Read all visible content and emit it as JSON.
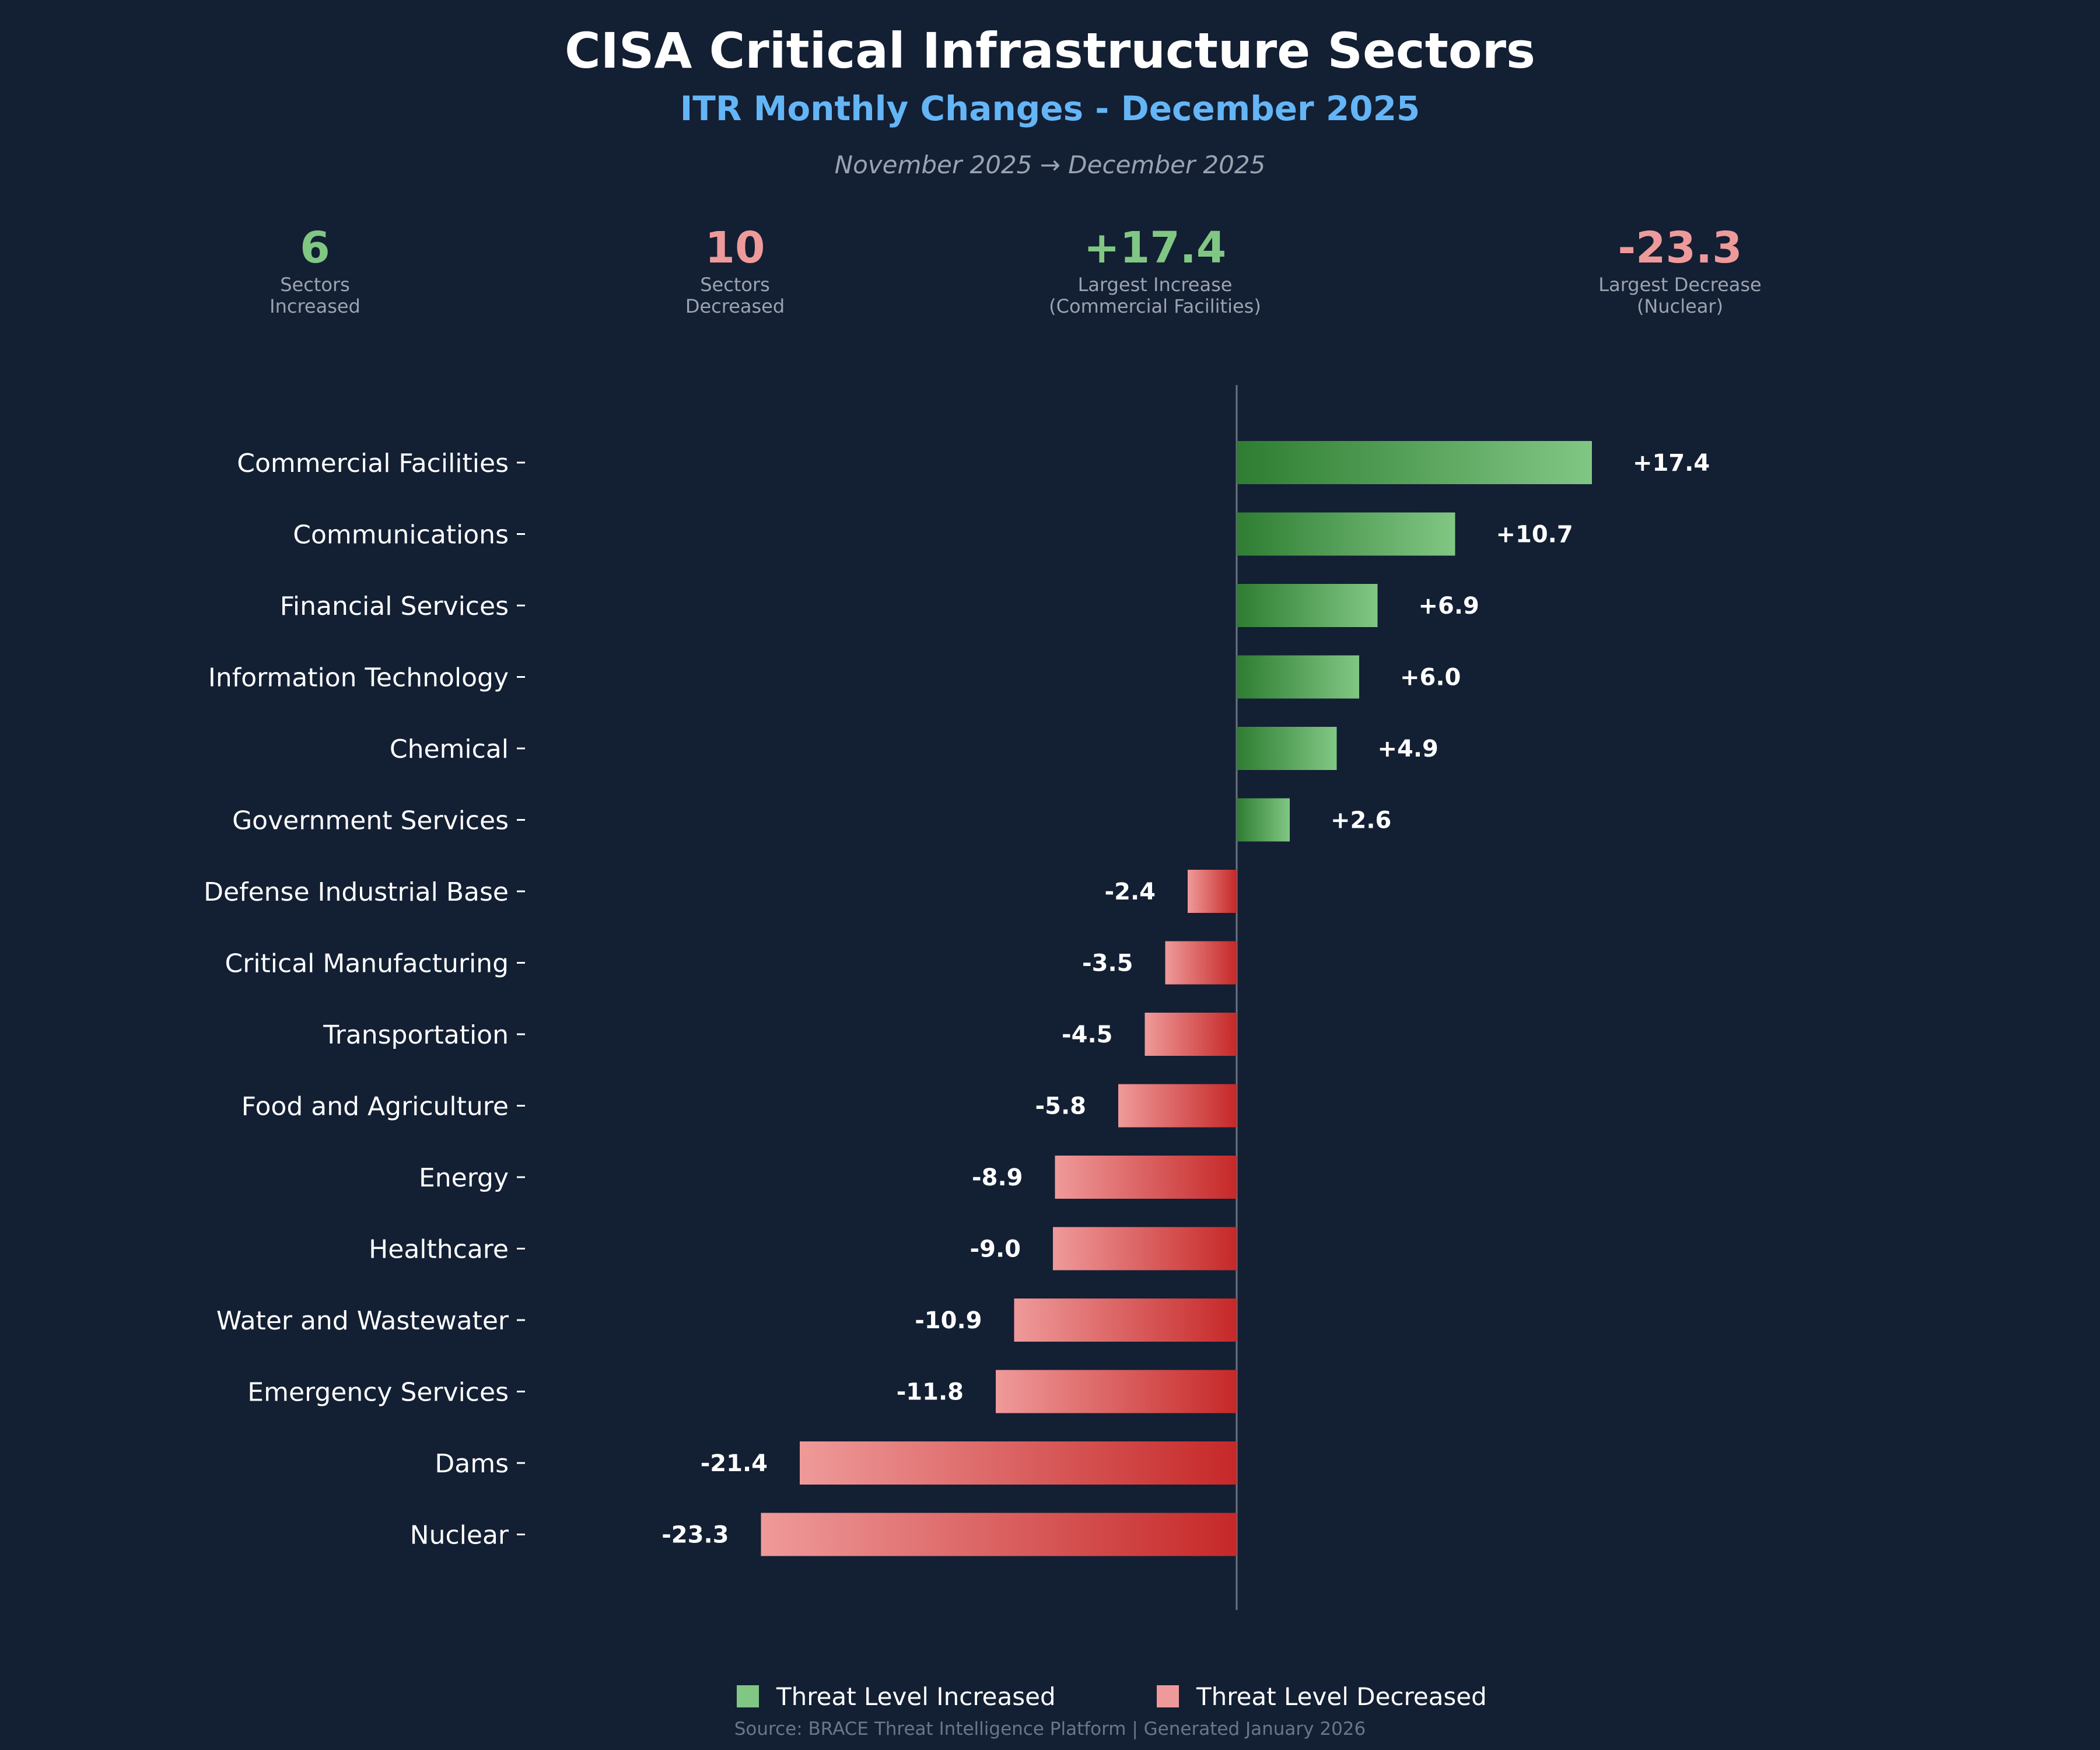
{
  "header": {
    "title": "CISA Critical Infrastructure Sectors",
    "subtitle": "ITR Monthly Changes - December 2025",
    "period": "November 2025 → December 2025"
  },
  "stats": [
    {
      "value": "6",
      "label": "Sectors",
      "sub": "Increased",
      "color": "#81c784"
    },
    {
      "value": "10",
      "label": "Sectors",
      "sub": "Decreased",
      "color": "#ef9a9a"
    },
    {
      "value": "+17.4",
      "label": "Largest Increase",
      "sub": "(Commercial Facilities)",
      "color": "#81c784"
    },
    {
      "value": "-23.3",
      "label": "Largest Decrease",
      "sub": "(Nuclear)",
      "color": "#ef9a9a"
    }
  ],
  "chart_data": {
    "type": "bar",
    "orientation": "horizontal",
    "categories": [
      "Commercial Facilities",
      "Communications",
      "Financial Services",
      "Information Technology",
      "Chemical",
      "Government Services",
      "Defense Industrial Base",
      "Critical Manufacturing",
      "Transportation",
      "Food and Agriculture",
      "Energy",
      "Healthcare",
      "Water and Wastewater",
      "Emergency Services",
      "Dams",
      "Nuclear"
    ],
    "values": [
      17.4,
      10.7,
      6.9,
      6.0,
      4.9,
      2.6,
      -2.4,
      -3.5,
      -4.5,
      -5.8,
      -8.9,
      -9.0,
      -10.9,
      -11.8,
      -21.4,
      -23.3
    ],
    "value_labels": [
      "+17.4",
      "+10.7",
      "+6.9",
      "+6.0",
      "+4.9",
      "+2.6",
      "-2.4",
      "-3.5",
      "-4.5",
      "-5.8",
      "-8.9",
      "-9.0",
      "-10.9",
      "-11.8",
      "-21.4",
      "-23.3"
    ],
    "xlabel": "",
    "ylabel": "",
    "grid": false,
    "zero_line": true,
    "legend_position": "bottom-center",
    "colors": {
      "increase_dark": "#2e7d32",
      "increase_light": "#81c784",
      "decrease_dark": "#c62828",
      "decrease_light": "#ef9a9a",
      "zero_line": "#6b7280",
      "background": "#131f33"
    }
  },
  "legend": {
    "increased_label": "Threat Level Increased",
    "decreased_label": "Threat Level Decreased",
    "increased_color": "#81c784",
    "decreased_color": "#ef9a9a"
  },
  "footer": {
    "source": "Source: BRACE Threat Intelligence Platform | Generated January 2026"
  }
}
